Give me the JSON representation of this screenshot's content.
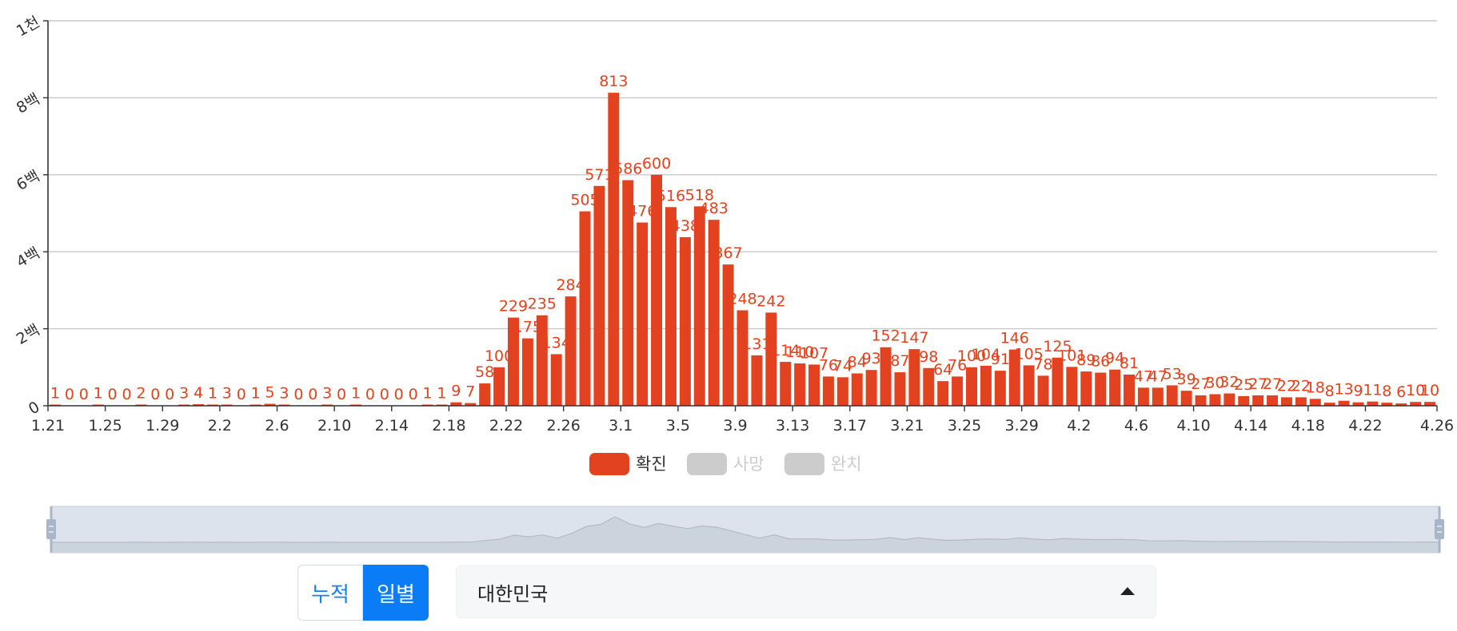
{
  "chart_data": {
    "type": "bar",
    "categories": [
      "1.21",
      "1.22",
      "1.23",
      "1.24",
      "1.25",
      "1.26",
      "1.27",
      "1.28",
      "1.29",
      "1.30",
      "1.31",
      "2.1",
      "2.2",
      "2.3",
      "2.4",
      "2.5",
      "2.6",
      "2.7",
      "2.8",
      "2.9",
      "2.10",
      "2.11",
      "2.12",
      "2.13",
      "2.14",
      "2.15",
      "2.16",
      "2.17",
      "2.18",
      "2.19",
      "2.20",
      "2.21",
      "2.22",
      "2.23",
      "2.24",
      "2.25",
      "2.26",
      "2.27",
      "2.28",
      "2.29",
      "3.1",
      "3.2",
      "3.3",
      "3.4",
      "3.5",
      "3.6",
      "3.7",
      "3.8",
      "3.9",
      "3.10",
      "3.11",
      "3.12",
      "3.13",
      "3.14",
      "3.15",
      "3.16",
      "3.17",
      "3.18",
      "3.19",
      "3.20",
      "3.21",
      "3.22",
      "3.23",
      "3.24",
      "3.25",
      "3.26",
      "3.27",
      "3.28",
      "3.29",
      "3.30",
      "3.31",
      "4.1",
      "4.2",
      "4.3",
      "4.4",
      "4.5",
      "4.6",
      "4.7",
      "4.8",
      "4.9",
      "4.10",
      "4.11",
      "4.12",
      "4.13",
      "4.14",
      "4.15",
      "4.16",
      "4.17",
      "4.18",
      "4.19",
      "4.20",
      "4.21",
      "4.22",
      "4.23",
      "4.24",
      "4.25",
      "4.26"
    ],
    "x_tick_labels": [
      "1.21",
      "1.25",
      "1.29",
      "2.2",
      "2.6",
      "2.10",
      "2.14",
      "2.18",
      "2.22",
      "2.26",
      "3.1",
      "3.5",
      "3.9",
      "3.13",
      "3.17",
      "3.21",
      "3.25",
      "3.29",
      "4.2",
      "4.6",
      "4.10",
      "4.14",
      "4.18",
      "4.22",
      "4.26"
    ],
    "series": [
      {
        "name": "확진",
        "color": "#e2421f",
        "values": [
          1,
          0,
          0,
          1,
          0,
          0,
          2,
          0,
          0,
          3,
          4,
          1,
          3,
          0,
          1,
          5,
          3,
          0,
          0,
          3,
          0,
          1,
          0,
          0,
          0,
          0,
          1,
          1,
          9,
          7,
          58,
          100,
          229,
          175,
          235,
          134,
          284,
          505,
          571,
          813,
          586,
          476,
          600,
          516,
          438,
          518,
          483,
          367,
          248,
          131,
          242,
          114,
          110,
          107,
          76,
          74,
          84,
          93,
          152,
          87,
          147,
          98,
          64,
          76,
          100,
          104,
          91,
          146,
          105,
          78,
          125,
          101,
          89,
          86,
          94,
          81,
          47,
          47,
          53,
          39,
          27,
          30,
          32,
          25,
          27,
          27,
          22,
          22,
          18,
          8,
          13,
          9,
          11,
          8,
          6,
          10,
          10
        ]
      }
    ],
    "y_ticks": [
      "0",
      "2백",
      "4백",
      "6백",
      "8백",
      "1천"
    ],
    "ylim": [
      0,
      1000
    ],
    "grid": true,
    "legend": {
      "placement": "bottom-center",
      "items": [
        {
          "label": "확진",
          "active": true,
          "color": "#e2421f"
        },
        {
          "label": "사망",
          "active": false,
          "color": "#cccccc"
        },
        {
          "label": "완치",
          "active": false,
          "color": "#cccccc"
        }
      ]
    }
  },
  "controls": {
    "mode_toggle": {
      "cumulative_label": "누적",
      "daily_label": "일별",
      "selected": "일별"
    },
    "region_select": {
      "value": "대한민국"
    }
  },
  "colors": {
    "accent": "#e2421f",
    "button_active": "#0a7cf5",
    "grid": "#c9c9c9"
  }
}
